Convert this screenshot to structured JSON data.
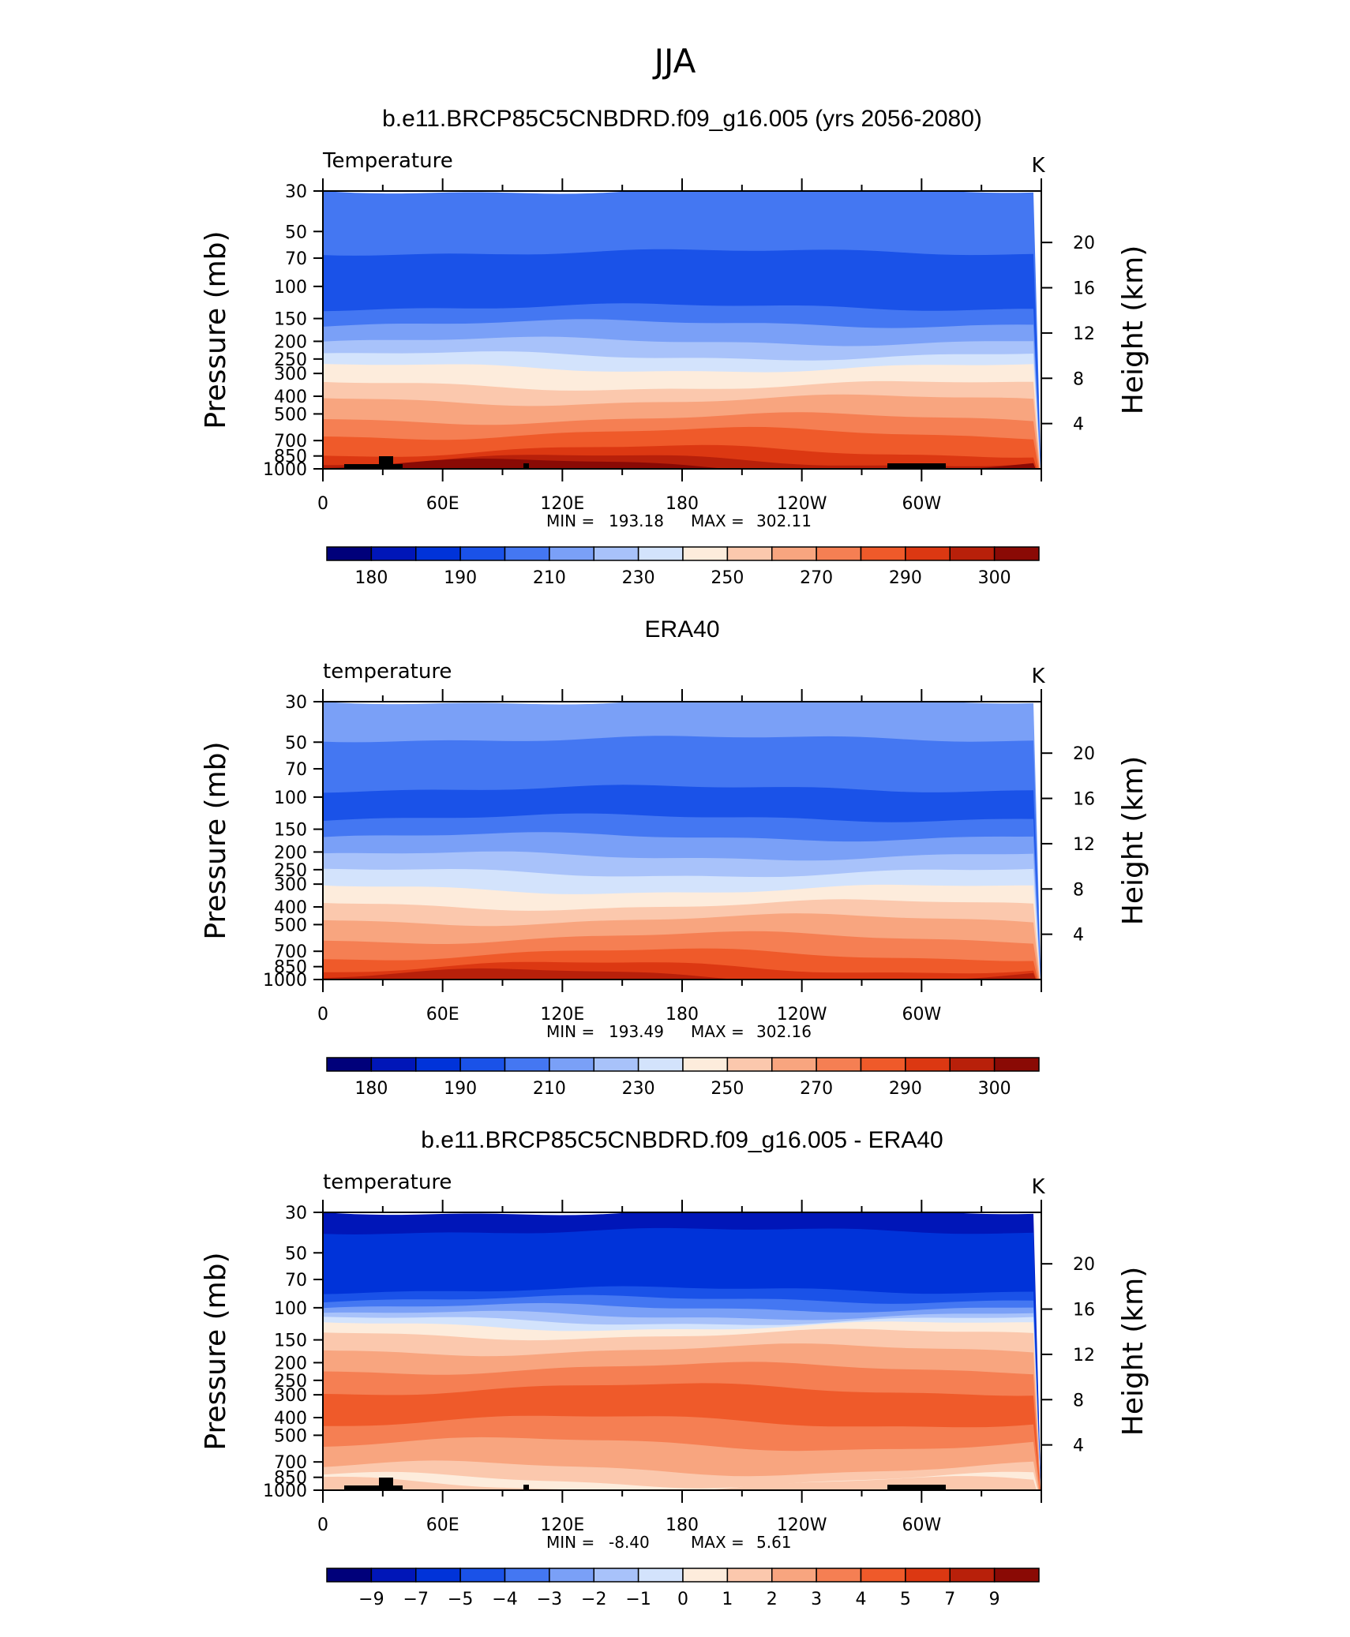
{
  "figure": {
    "title": "JJA"
  },
  "chart_data": [
    {
      "type": "heatmap",
      "title": "b.e11.BRCP85C5CNBDRD.f09_g16.005 (yrs 2056-2080)",
      "left_label": "Temperature",
      "units": "K",
      "ylabel": "Pressure  (mb)",
      "ylabel_right": "Height  (km)",
      "x_ticks": [
        "0",
        "60E",
        "120E",
        "180",
        "120W",
        "60W"
      ],
      "y_ticks": [
        "30",
        "50",
        "70",
        "100",
        "150",
        "200",
        "250",
        "300",
        "400",
        "500",
        "700",
        "850",
        "1000"
      ],
      "y_ticks_right": [
        "20",
        "16",
        "12",
        "8",
        "4"
      ],
      "stats": {
        "min_label": "MIN =",
        "min": "193.18",
        "max_label": "MAX =",
        "max": "302.11"
      },
      "colorbar": {
        "labels": [
          "180",
          "190",
          "210",
          "230",
          "250",
          "270",
          "290",
          "300"
        ],
        "colors": [
          "#00007a",
          "#0016b8",
          "#0033d9",
          "#1a52e8",
          "#4477f2",
          "#7aa0f7",
          "#a8c2fa",
          "#d3e3fc",
          "#fdecdc",
          "#fbc8ad",
          "#f8a57f",
          "#f57f53",
          "#ef5a2a",
          "#dc3812",
          "#b8200a",
          "#8a0a05"
        ]
      },
      "bands": [
        {
          "p": 30,
          "c": 4
        },
        {
          "p": 65,
          "c": 3
        },
        {
          "p": 130,
          "c": 4
        },
        {
          "p": 160,
          "c": 5
        },
        {
          "p": 200,
          "c": 6
        },
        {
          "p": 240,
          "c": 7
        },
        {
          "p": 280,
          "c": 8
        },
        {
          "p": 350,
          "c": 9
        },
        {
          "p": 420,
          "c": 10
        },
        {
          "p": 530,
          "c": 11
        },
        {
          "p": 640,
          "c": 12
        },
        {
          "p": 800,
          "c": 13
        },
        {
          "p": 900,
          "c": 14
        },
        {
          "p": 960,
          "c": 15
        }
      ]
    },
    {
      "type": "heatmap",
      "title": "ERA40",
      "left_label": "temperature",
      "units": "K",
      "ylabel": "Pressure  (mb)",
      "ylabel_right": "Height  (km)",
      "x_ticks": [
        "0",
        "60E",
        "120E",
        "180",
        "120W",
        "60W"
      ],
      "y_ticks": [
        "30",
        "50",
        "70",
        "100",
        "150",
        "200",
        "250",
        "300",
        "400",
        "500",
        "700",
        "850",
        "1000"
      ],
      "y_ticks_right": [
        "20",
        "16",
        "12",
        "8",
        "4"
      ],
      "stats": {
        "min_label": "MIN =",
        "min": "193.49",
        "max_label": "MAX =",
        "max": "302.16"
      },
      "colorbar": {
        "labels": [
          "180",
          "190",
          "210",
          "230",
          "250",
          "270",
          "290",
          "300"
        ],
        "colors": [
          "#00007a",
          "#0016b8",
          "#0033d9",
          "#1a52e8",
          "#4477f2",
          "#7aa0f7",
          "#a8c2fa",
          "#d3e3fc",
          "#fdecdc",
          "#fbc8ad",
          "#f8a57f",
          "#f57f53",
          "#ef5a2a",
          "#dc3812",
          "#b8200a",
          "#8a0a05"
        ]
      },
      "bands": [
        {
          "p": 30,
          "c": 5
        },
        {
          "p": 48,
          "c": 4
        },
        {
          "p": 90,
          "c": 3
        },
        {
          "p": 130,
          "c": 4
        },
        {
          "p": 165,
          "c": 5
        },
        {
          "p": 210,
          "c": 6
        },
        {
          "p": 260,
          "c": 7
        },
        {
          "p": 320,
          "c": 8
        },
        {
          "p": 390,
          "c": 9
        },
        {
          "p": 470,
          "c": 10
        },
        {
          "p": 590,
          "c": 11
        },
        {
          "p": 730,
          "c": 12
        },
        {
          "p": 860,
          "c": 13
        },
        {
          "p": 950,
          "c": 14
        }
      ]
    },
    {
      "type": "heatmap",
      "title": "b.e11.BRCP85C5CNBDRD.f09_g16.005 - ERA40",
      "left_label": "temperature",
      "units": "K",
      "ylabel": "Pressure  (mb)",
      "ylabel_right": "Height  (km)",
      "x_ticks": [
        "0",
        "60E",
        "120E",
        "180",
        "120W",
        "60W"
      ],
      "y_ticks": [
        "30",
        "50",
        "70",
        "100",
        "150",
        "200",
        "250",
        "300",
        "400",
        "500",
        "700",
        "850",
        "1000"
      ],
      "y_ticks_right": [
        "20",
        "16",
        "12",
        "8",
        "4"
      ],
      "stats": {
        "min_label": "MIN =",
        "min": "-8.40",
        "max_label": "MAX =",
        "max": "5.61"
      },
      "colorbar": {
        "labels": [
          "-9",
          "-7",
          "-5",
          "-4",
          "-3",
          "-2",
          "-1",
          "0",
          "1",
          "2",
          "3",
          "4",
          "5",
          "7",
          "9"
        ],
        "colors": [
          "#00007a",
          "#0016b8",
          "#0033d9",
          "#1a52e8",
          "#4477f2",
          "#7aa0f7",
          "#a8c2fa",
          "#d3e3fc",
          "#fdecdc",
          "#fbc8ad",
          "#f8a57f",
          "#f57f53",
          "#ef5a2a",
          "#dc3812",
          "#b8200a",
          "#8a0a05"
        ]
      },
      "bands": [
        {
          "p": 30,
          "c": 1
        },
        {
          "p": 38,
          "c": 2
        },
        {
          "p": 80,
          "c": 3
        },
        {
          "p": 90,
          "c": 4
        },
        {
          "p": 100,
          "c": 5
        },
        {
          "p": 110,
          "c": 6
        },
        {
          "p": 118,
          "c": 7
        },
        {
          "p": 126,
          "c": 8
        },
        {
          "p": 140,
          "c": 9
        },
        {
          "p": 170,
          "c": 10
        },
        {
          "p": 215,
          "c": 11
        },
        {
          "p": 280,
          "c": 12
        },
        {
          "p": 420,
          "c": 11
        },
        {
          "p": 560,
          "c": 10
        },
        {
          "p": 760,
          "c": 9
        },
        {
          "p": 880,
          "c": 8
        },
        {
          "p": 930,
          "c": 9
        }
      ]
    }
  ]
}
